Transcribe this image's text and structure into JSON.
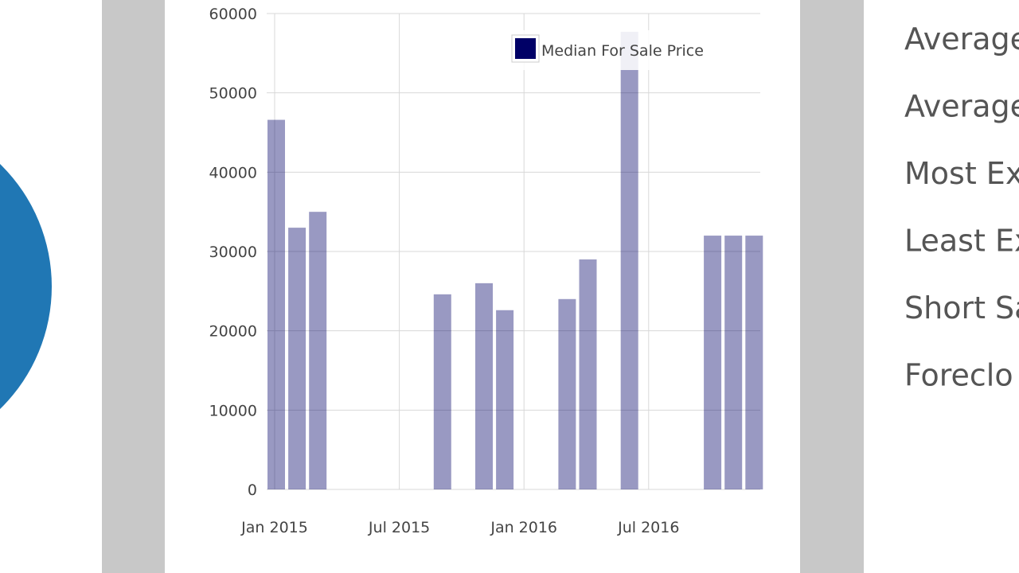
{
  "chart_data": {
    "type": "bar",
    "categories": [
      "Jan 2015",
      null,
      null,
      null,
      null,
      null,
      "Jul 2015",
      null,
      null,
      null,
      null,
      null,
      "Jan 2016",
      null,
      null,
      null,
      null,
      null,
      "Jul 2016",
      null,
      null,
      null,
      null,
      null
    ],
    "series": [
      {
        "name": "Median For Sale Price",
        "color": "#000066",
        "values": [
          46600,
          33000,
          35000,
          null,
          null,
          null,
          null,
          null,
          24600,
          null,
          26000,
          22600,
          null,
          null,
          24000,
          29000,
          null,
          57700,
          null,
          null,
          null,
          32000,
          32000,
          32000
        ]
      }
    ],
    "ylim": [
      0,
      60000
    ],
    "yticks": [
      0,
      10000,
      20000,
      30000,
      40000,
      50000,
      60000
    ],
    "grid": true,
    "legend": "top-right"
  },
  "sidebar": {
    "items": [
      "Average",
      "Average",
      "Most Ex",
      "Least Ex",
      "Short Sa",
      "Foreclo"
    ]
  }
}
